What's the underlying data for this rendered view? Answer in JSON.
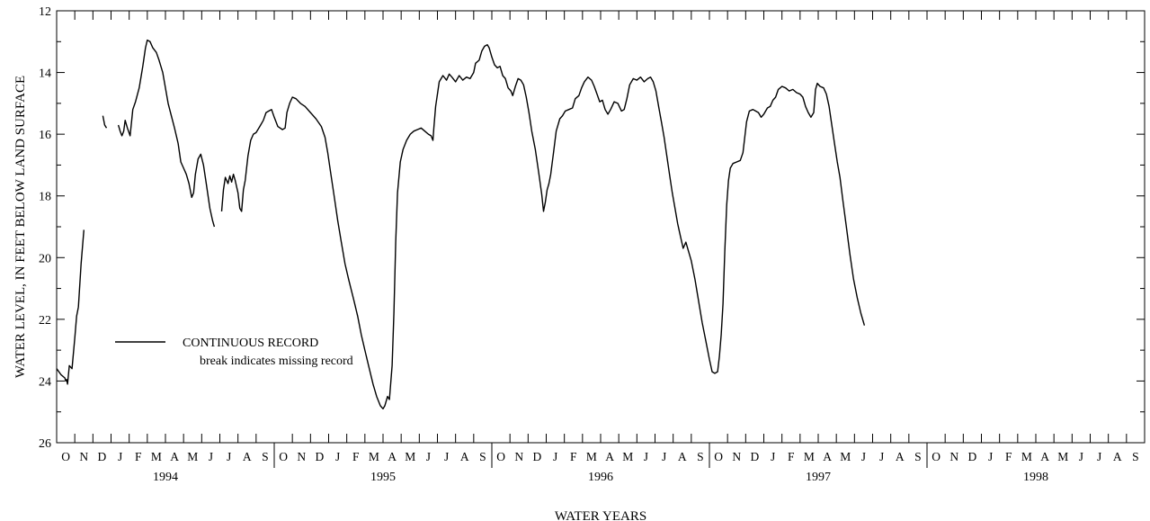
{
  "chart_data": {
    "type": "line",
    "ylabel": "WATER LEVEL, IN FEET BELOW LAND SURFACE",
    "xlabel": "WATER YEARS",
    "ylim": [
      12,
      26
    ],
    "y_inverted": true,
    "y_ticks": [
      "12",
      "14",
      "16",
      "18",
      "20",
      "22",
      "24",
      "26"
    ],
    "grid": false,
    "water_years": [
      "1994",
      "1995",
      "1996",
      "1997",
      "1998"
    ],
    "month_labels": [
      "O",
      "N",
      "D",
      "J",
      "F",
      "M",
      "A",
      "M",
      "J",
      "J",
      "A",
      "S"
    ],
    "x_units": "months since start of water year 1994 (October 1, 1993)",
    "legend": {
      "placement": "left-center",
      "entry": "CONTINUOUS RECORD",
      "note": "break indicates missing record"
    },
    "series": [
      {
        "segments": [
          [
            [
              0,
              23.6
            ],
            [
              0.25,
              23.8
            ],
            [
              0.45,
              23.9
            ],
            [
              0.5,
              24.0
            ],
            [
              0.55,
              23.95
            ],
            [
              0.6,
              24.1
            ],
            [
              0.7,
              23.5
            ],
            [
              0.85,
              23.6
            ],
            [
              1.0,
              22.6
            ],
            [
              1.1,
              21.9
            ],
            [
              1.2,
              21.6
            ],
            [
              1.35,
              20.2
            ],
            [
              1.5,
              19.1
            ]
          ],
          [
            [
              2.55,
              15.4
            ],
            [
              2.65,
              15.7
            ],
            [
              2.75,
              15.8
            ]
          ],
          [
            [
              3.4,
              15.7
            ],
            [
              3.5,
              15.9
            ],
            [
              3.6,
              16.05
            ],
            [
              3.7,
              15.9
            ],
            [
              3.78,
              15.55
            ],
            [
              3.9,
              15.8
            ],
            [
              4.05,
              16.05
            ],
            [
              4.2,
              15.2
            ],
            [
              4.35,
              14.95
            ],
            [
              4.55,
              14.5
            ],
            [
              4.75,
              13.8
            ],
            [
              4.9,
              13.2
            ],
            [
              5.0,
              12.95
            ],
            [
              5.15,
              13.0
            ],
            [
              5.3,
              13.2
            ],
            [
              5.5,
              13.35
            ],
            [
              5.65,
              13.6
            ],
            [
              5.85,
              14.0
            ],
            [
              6.0,
              14.5
            ],
            [
              6.15,
              15.0
            ],
            [
              6.3,
              15.35
            ],
            [
              6.5,
              15.8
            ],
            [
              6.7,
              16.3
            ],
            [
              6.85,
              16.9
            ],
            [
              7.0,
              17.1
            ],
            [
              7.15,
              17.3
            ],
            [
              7.3,
              17.6
            ],
            [
              7.45,
              18.05
            ],
            [
              7.55,
              17.9
            ],
            [
              7.65,
              17.3
            ],
            [
              7.8,
              16.8
            ],
            [
              7.95,
              16.65
            ],
            [
              8.1,
              17.0
            ],
            [
              8.25,
              17.6
            ],
            [
              8.45,
              18.4
            ],
            [
              8.6,
              18.8
            ],
            [
              8.7,
              19.0
            ]
          ],
          [
            [
              9.1,
              18.5
            ],
            [
              9.2,
              17.8
            ],
            [
              9.3,
              17.4
            ],
            [
              9.45,
              17.6
            ],
            [
              9.55,
              17.35
            ],
            [
              9.65,
              17.55
            ],
            [
              9.75,
              17.3
            ],
            [
              9.85,
              17.5
            ],
            [
              10.0,
              17.9
            ],
            [
              10.1,
              18.4
            ],
            [
              10.2,
              18.5
            ],
            [
              10.3,
              17.8
            ],
            [
              10.4,
              17.5
            ],
            [
              10.55,
              16.7
            ],
            [
              10.7,
              16.2
            ],
            [
              10.85,
              16.0
            ],
            [
              11.0,
              15.95
            ],
            [
              11.2,
              15.75
            ],
            [
              11.4,
              15.55
            ],
            [
              11.55,
              15.3
            ],
            [
              11.7,
              15.25
            ],
            [
              11.85,
              15.2
            ],
            [
              12.0,
              15.45
            ],
            [
              12.2,
              15.75
            ],
            [
              12.45,
              15.85
            ],
            [
              12.6,
              15.8
            ],
            [
              12.7,
              15.3
            ],
            [
              12.85,
              15.0
            ],
            [
              13.0,
              14.8
            ],
            [
              13.2,
              14.85
            ],
            [
              13.45,
              15.0
            ],
            [
              13.7,
              15.1
            ],
            [
              14.0,
              15.3
            ],
            [
              14.3,
              15.5
            ],
            [
              14.6,
              15.75
            ],
            [
              14.8,
              16.1
            ],
            [
              14.95,
              16.6
            ],
            [
              15.1,
              17.2
            ],
            [
              15.3,
              18.0
            ],
            [
              15.5,
              18.8
            ],
            [
              15.7,
              19.5
            ],
            [
              15.9,
              20.2
            ],
            [
              16.1,
              20.7
            ],
            [
              16.25,
              21.05
            ],
            [
              16.4,
              21.4
            ],
            [
              16.6,
              21.9
            ],
            [
              16.8,
              22.5
            ],
            [
              17.0,
              23.0
            ],
            [
              17.2,
              23.5
            ],
            [
              17.45,
              24.1
            ],
            [
              17.65,
              24.5
            ],
            [
              17.85,
              24.8
            ],
            [
              18.0,
              24.9
            ],
            [
              18.1,
              24.8
            ],
            [
              18.25,
              24.5
            ],
            [
              18.35,
              24.6
            ],
            [
              18.5,
              23.5
            ],
            [
              18.6,
              21.8
            ],
            [
              18.7,
              19.5
            ],
            [
              18.8,
              17.9
            ],
            [
              18.95,
              16.9
            ],
            [
              19.1,
              16.5
            ],
            [
              19.3,
              16.2
            ],
            [
              19.5,
              16.0
            ],
            [
              19.7,
              15.9
            ],
            [
              19.9,
              15.85
            ],
            [
              20.1,
              15.8
            ],
            [
              20.3,
              15.9
            ],
            [
              20.5,
              16.0
            ],
            [
              20.65,
              16.05
            ],
            [
              20.75,
              16.2
            ],
            [
              20.8,
              15.8
            ],
            [
              20.9,
              15.1
            ],
            [
              21.0,
              14.7
            ],
            [
              21.1,
              14.3
            ],
            [
              21.3,
              14.1
            ],
            [
              21.5,
              14.25
            ],
            [
              21.65,
              14.05
            ],
            [
              21.8,
              14.15
            ],
            [
              22.0,
              14.3
            ],
            [
              22.2,
              14.1
            ],
            [
              22.4,
              14.25
            ],
            [
              22.6,
              14.15
            ],
            [
              22.8,
              14.2
            ],
            [
              23.0,
              14.0
            ],
            [
              23.1,
              13.7
            ],
            [
              23.3,
              13.6
            ],
            [
              23.45,
              13.3
            ],
            [
              23.6,
              13.15
            ],
            [
              23.75,
              13.1
            ],
            [
              23.85,
              13.2
            ],
            [
              24.0,
              13.5
            ],
            [
              24.15,
              13.75
            ],
            [
              24.3,
              13.85
            ],
            [
              24.45,
              13.8
            ],
            [
              24.6,
              14.1
            ],
            [
              24.75,
              14.2
            ],
            [
              24.9,
              14.5
            ],
            [
              25.05,
              14.6
            ],
            [
              25.15,
              14.75
            ],
            [
              25.3,
              14.45
            ],
            [
              25.45,
              14.2
            ],
            [
              25.6,
              14.25
            ],
            [
              25.75,
              14.4
            ],
            [
              25.9,
              14.8
            ],
            [
              26.05,
              15.3
            ],
            [
              26.2,
              15.9
            ],
            [
              26.4,
              16.5
            ],
            [
              26.6,
              17.3
            ],
            [
              26.75,
              17.95
            ],
            [
              26.85,
              18.5
            ],
            [
              26.95,
              18.2
            ],
            [
              27.05,
              17.8
            ],
            [
              27.15,
              17.6
            ],
            [
              27.25,
              17.3
            ],
            [
              27.4,
              16.6
            ],
            [
              27.55,
              15.9
            ],
            [
              27.75,
              15.5
            ],
            [
              27.9,
              15.4
            ],
            [
              28.05,
              15.25
            ],
            [
              28.25,
              15.2
            ],
            [
              28.45,
              15.15
            ],
            [
              28.6,
              14.85
            ],
            [
              28.8,
              14.75
            ],
            [
              28.95,
              14.5
            ],
            [
              29.1,
              14.3
            ],
            [
              29.3,
              14.15
            ],
            [
              29.5,
              14.25
            ],
            [
              29.65,
              14.45
            ],
            [
              29.8,
              14.7
            ],
            [
              29.95,
              14.95
            ],
            [
              30.1,
              14.9
            ],
            [
              30.25,
              15.2
            ],
            [
              30.4,
              15.35
            ],
            [
              30.55,
              15.2
            ],
            [
              30.75,
              14.95
            ],
            [
              30.95,
              15.0
            ],
            [
              31.15,
              15.25
            ],
            [
              31.3,
              15.2
            ],
            [
              31.45,
              14.85
            ],
            [
              31.6,
              14.4
            ],
            [
              31.8,
              14.2
            ],
            [
              32.0,
              14.25
            ],
            [
              32.2,
              14.15
            ],
            [
              32.4,
              14.3
            ],
            [
              32.6,
              14.2
            ],
            [
              32.75,
              14.15
            ],
            [
              32.9,
              14.3
            ],
            [
              33.05,
              14.6
            ],
            [
              33.2,
              15.1
            ],
            [
              33.35,
              15.6
            ],
            [
              33.5,
              16.1
            ],
            [
              33.65,
              16.7
            ],
            [
              33.8,
              17.3
            ],
            [
              33.95,
              17.9
            ],
            [
              34.1,
              18.4
            ],
            [
              34.25,
              18.9
            ],
            [
              34.4,
              19.3
            ],
            [
              34.55,
              19.7
            ],
            [
              34.7,
              19.5
            ],
            [
              34.85,
              19.8
            ],
            [
              35.0,
              20.1
            ],
            [
              35.2,
              20.7
            ],
            [
              35.4,
              21.4
            ],
            [
              35.6,
              22.1
            ],
            [
              35.8,
              22.7
            ],
            [
              36.0,
              23.3
            ],
            [
              36.15,
              23.7
            ],
            [
              36.3,
              23.75
            ],
            [
              36.45,
              23.7
            ],
            [
              36.55,
              23.2
            ],
            [
              36.65,
              22.5
            ],
            [
              36.75,
              21.5
            ],
            [
              36.85,
              19.8
            ],
            [
              36.95,
              18.3
            ],
            [
              37.05,
              17.5
            ],
            [
              37.15,
              17.1
            ],
            [
              37.3,
              16.95
            ],
            [
              37.5,
              16.9
            ],
            [
              37.7,
              16.85
            ],
            [
              37.85,
              16.6
            ],
            [
              37.95,
              16.1
            ],
            [
              38.05,
              15.6
            ],
            [
              38.2,
              15.25
            ],
            [
              38.4,
              15.2
            ],
            [
              38.55,
              15.25
            ],
            [
              38.7,
              15.3
            ],
            [
              38.85,
              15.45
            ],
            [
              39.0,
              15.35
            ],
            [
              39.2,
              15.15
            ],
            [
              39.35,
              15.1
            ],
            [
              39.5,
              14.9
            ],
            [
              39.65,
              14.8
            ],
            [
              39.8,
              14.55
            ],
            [
              40.0,
              14.45
            ],
            [
              40.2,
              14.5
            ],
            [
              40.4,
              14.6
            ],
            [
              40.6,
              14.55
            ],
            [
              40.8,
              14.65
            ],
            [
              41.0,
              14.7
            ],
            [
              41.15,
              14.8
            ],
            [
              41.3,
              15.1
            ],
            [
              41.45,
              15.3
            ],
            [
              41.6,
              15.45
            ],
            [
              41.75,
              15.3
            ],
            [
              41.85,
              14.55
            ],
            [
              41.95,
              14.35
            ],
            [
              42.1,
              14.45
            ],
            [
              42.3,
              14.5
            ],
            [
              42.45,
              14.7
            ],
            [
              42.6,
              15.1
            ],
            [
              42.75,
              15.7
            ],
            [
              42.9,
              16.3
            ],
            [
              43.05,
              16.9
            ],
            [
              43.2,
              17.4
            ],
            [
              43.35,
              18.1
            ],
            [
              43.55,
              19.0
            ],
            [
              43.75,
              19.9
            ],
            [
              43.95,
              20.7
            ],
            [
              44.15,
              21.3
            ],
            [
              44.35,
              21.8
            ],
            [
              44.55,
              22.2
            ]
          ]
        ]
      }
    ]
  }
}
